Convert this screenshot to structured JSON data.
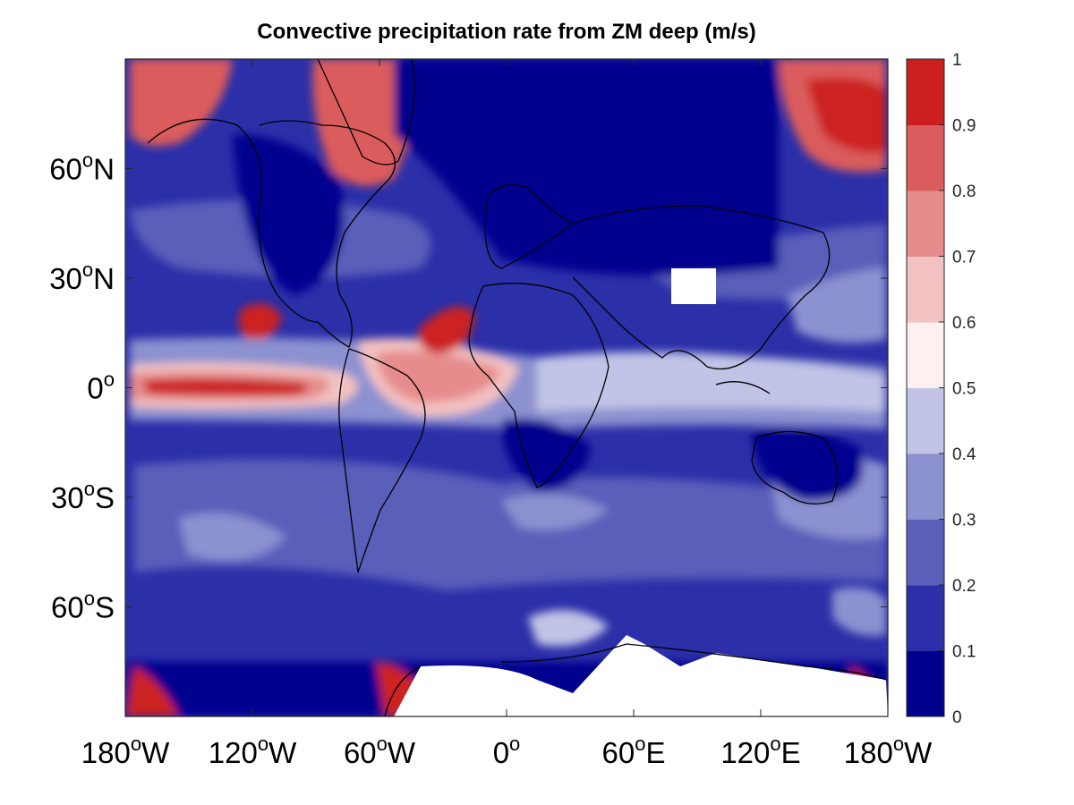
{
  "title": "Convective precipitation rate from ZM deep (m/s)",
  "axes": {
    "x_ticks": [
      {
        "lon": -180,
        "deg": "180",
        "hemi": "W"
      },
      {
        "lon": -120,
        "deg": "120",
        "hemi": "W"
      },
      {
        "lon": -60,
        "deg": "60",
        "hemi": "W"
      },
      {
        "lon": 0,
        "deg": "0",
        "hemi": ""
      },
      {
        "lon": 60,
        "deg": "60",
        "hemi": "E"
      },
      {
        "lon": 120,
        "deg": "120",
        "hemi": "E"
      },
      {
        "lon": 180,
        "deg": "180",
        "hemi": "W"
      }
    ],
    "y_ticks": [
      {
        "lat": 60,
        "deg": "60",
        "hemi": "N"
      },
      {
        "lat": 30,
        "deg": "30",
        "hemi": "N"
      },
      {
        "lat": 0,
        "deg": "0",
        "hemi": ""
      },
      {
        "lat": -30,
        "deg": "30",
        "hemi": "S"
      },
      {
        "lat": -60,
        "deg": "60",
        "hemi": "S"
      }
    ],
    "degree_symbol": "o",
    "lon_range": [
      -180,
      180
    ],
    "lat_range": [
      -90,
      90
    ]
  },
  "colorbar": {
    "levels": [
      "0",
      "0.1",
      "0.2",
      "0.3",
      "0.4",
      "0.5",
      "0.6",
      "0.7",
      "0.8",
      "0.9",
      "1"
    ],
    "colors": [
      "#00008f",
      "#2b2fa8",
      "#5a5fba",
      "#8c91d0",
      "#c1c4e6",
      "#fcf0f0",
      "#f2c1c1",
      "#e68c8c",
      "#db5c5c",
      "#cc2020"
    ]
  },
  "chart_data": {
    "type": "heatmap",
    "title": "Convective precipitation rate from ZM deep (m/s)",
    "x": "longitude",
    "y": "latitude",
    "xlim": [
      -180,
      180
    ],
    "ylim": [
      -90,
      90
    ],
    "color_range": [
      0,
      1
    ]
  }
}
